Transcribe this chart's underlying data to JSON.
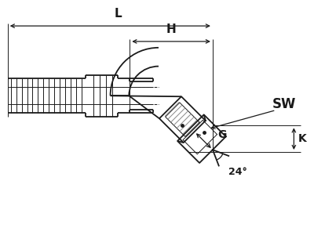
{
  "bg_color": "#ffffff",
  "line_color": "#1a1a1a",
  "labels": {
    "SW": "SW",
    "K": "K",
    "G": "G",
    "H": "H",
    "L": "L",
    "angle": "24°"
  },
  "fig_width": 4.0,
  "fig_height": 3.0,
  "dpi": 100
}
